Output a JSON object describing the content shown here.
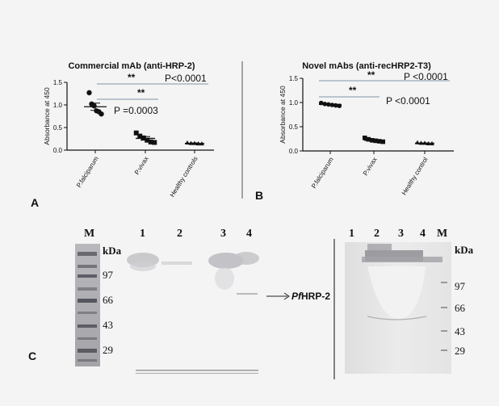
{
  "charts": [
    {
      "type": "scatter",
      "panel_letter": "A",
      "title": "Commercial mAb (anti-HRP-2)",
      "ylabel": "Absorbance at 450",
      "ylim": [
        0,
        1.5
      ],
      "yticks": [
        "0.0",
        "0.5",
        "1.0",
        "1.5"
      ],
      "categories": [
        "P.falciparum",
        "P.vivax",
        "Healthy controls"
      ],
      "points": [
        [
          1.27,
          1.02,
          0.98,
          0.87,
          0.85,
          0.8
        ],
        [
          0.38,
          0.31,
          0.27,
          0.22,
          0.18,
          0.17
        ],
        [
          0.16,
          0.15,
          0.15,
          0.14,
          0.14
        ]
      ],
      "mean": [
        0.96,
        0.26,
        0.15
      ],
      "sem": [
        0.08,
        0.04,
        0.01
      ],
      "annotations": {
        "far_stars": "**",
        "far_p": "P<0.0001",
        "near_stars": "**",
        "near_p": "P =0.0003"
      }
    },
    {
      "type": "scatter",
      "panel_letter": "B",
      "title": "Novel mAbs (anti-recHRP2-T3)",
      "ylabel": "Absorbance at 450",
      "ylim": [
        0,
        1.5
      ],
      "yticks": [
        "0.0",
        "0.5",
        "1.0",
        "1.5"
      ],
      "categories": [
        "P.falciparum",
        "P.vivax",
        "Healthy control"
      ],
      "points": [
        [
          0.99,
          0.97,
          0.96,
          0.95,
          0.94,
          0.93
        ],
        [
          0.27,
          0.24,
          0.22,
          0.21,
          0.2,
          0.19
        ],
        [
          0.17,
          0.16,
          0.16,
          0.15,
          0.15
        ]
      ],
      "mean": [
        0.96,
        0.22,
        0.16
      ],
      "sem": [
        0.01,
        0.01,
        0.005
      ],
      "annotations": {
        "far_stars": "**",
        "far_p": "P <0.0001",
        "near_stars": "**",
        "near_p": "P <0.0001"
      }
    }
  ],
  "panel_c": {
    "letter": "C",
    "left_blot": {
      "marker_label": "M",
      "lanes": [
        "1",
        "2",
        "3",
        "4"
      ],
      "kda_label": "kDa",
      "markers": [
        "97",
        "66",
        "43",
        "29"
      ],
      "arrow_label_italic": "Pf",
      "arrow_label_rest": "HRP-2"
    },
    "right_blot": {
      "lanes": [
        "1",
        "2",
        "3",
        "4"
      ],
      "marker_label": "M",
      "kda_label": "kDa",
      "markers": [
        "97",
        "66",
        "43",
        "29"
      ]
    }
  }
}
